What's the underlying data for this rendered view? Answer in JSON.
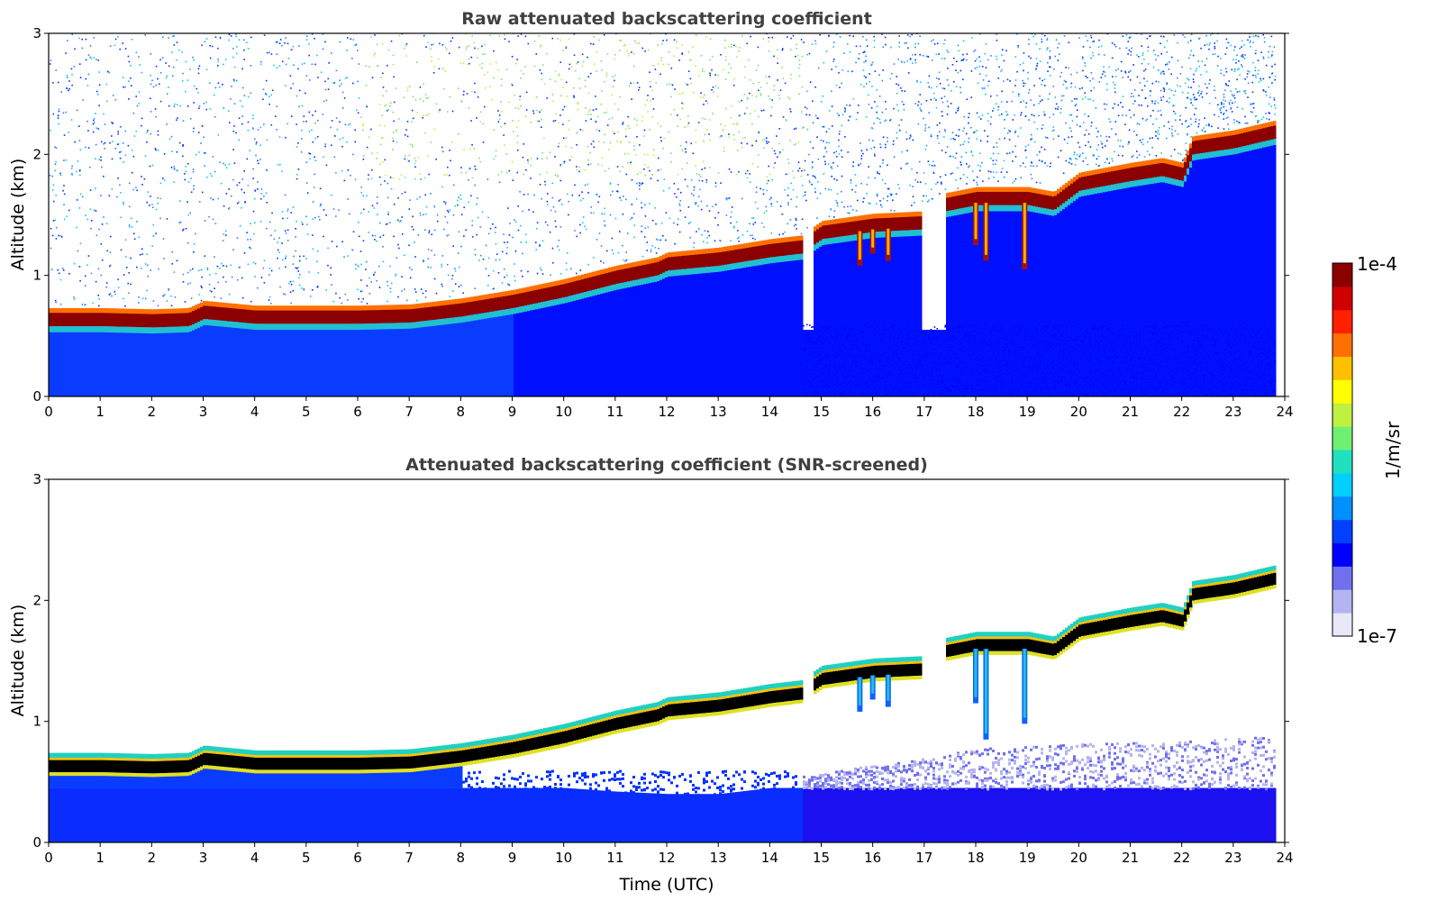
{
  "chart_data": [
    {
      "type": "heatmap",
      "title": "Raw attenuated backscattering coefficient",
      "xlabel": "",
      "ylabel": "Altitude (km)",
      "xlim": [
        0,
        24
      ],
      "ylim": [
        0,
        3
      ],
      "xticks": [
        "0",
        "1",
        "2",
        "3",
        "4",
        "5",
        "6",
        "7",
        "8",
        "9",
        "10",
        "11",
        "12",
        "13",
        "14",
        "15",
        "16",
        "17",
        "18",
        "19",
        "20",
        "21",
        "22",
        "23",
        "24"
      ],
      "yticks": [
        "0",
        "1",
        "2",
        "3"
      ],
      "x_units": "hours UTC",
      "data_end_x": 23.8,
      "layer_top_km": {
        "x": [
          0,
          1,
          2,
          2.7,
          3,
          4,
          5,
          6,
          7,
          8,
          9,
          10,
          11,
          11.8,
          12,
          13,
          14,
          14.6,
          15,
          16,
          17,
          17.4,
          18,
          19,
          19.5,
          20,
          21,
          21.6,
          22,
          22.2,
          23,
          23.8
        ],
        "y": [
          0.7,
          0.7,
          0.69,
          0.7,
          0.76,
          0.72,
          0.72,
          0.72,
          0.73,
          0.78,
          0.85,
          0.94,
          1.05,
          1.12,
          1.16,
          1.2,
          1.27,
          1.3,
          1.42,
          1.48,
          1.5,
          1.65,
          1.7,
          1.7,
          1.66,
          1.82,
          1.9,
          1.94,
          1.9,
          2.12,
          2.17,
          2.25
        ]
      },
      "gaps_x": [
        [
          14.6,
          14.85
        ],
        [
          16.95,
          17.4
        ]
      ],
      "fallstreaks": [
        {
          "x": 15.75,
          "bottom_km": 1.08
        },
        {
          "x": 16.0,
          "bottom_km": 1.18
        },
        {
          "x": 16.3,
          "bottom_km": 1.12
        },
        {
          "x": 18.0,
          "bottom_km": 1.25
        },
        {
          "x": 18.2,
          "bottom_km": 1.12
        },
        {
          "x": 18.95,
          "bottom_km": 1.05
        }
      ]
    },
    {
      "type": "heatmap",
      "title": "Attenuated backscattering coefficient (SNR-screened)",
      "xlabel": "Time (UTC)",
      "ylabel": "Altitude (km)",
      "xlim": [
        0,
        24
      ],
      "ylim": [
        0,
        3
      ],
      "xticks": [
        "0",
        "1",
        "2",
        "3",
        "4",
        "5",
        "6",
        "7",
        "8",
        "9",
        "10",
        "11",
        "12",
        "13",
        "14",
        "15",
        "16",
        "17",
        "18",
        "19",
        "20",
        "21",
        "22",
        "23",
        "24"
      ],
      "yticks": [
        "0",
        "1",
        "2",
        "3"
      ],
      "x_units": "hours UTC",
      "data_end_x": 23.8,
      "screened": true,
      "boundary_layer_top_km": {
        "x": [
          0,
          6,
          7,
          8,
          9,
          10,
          11,
          12,
          13,
          14,
          14.6,
          16,
          17,
          18,
          20,
          22,
          23.8
        ],
        "y": [
          0.58,
          0.58,
          0.56,
          0.55,
          0.52,
          0.45,
          0.42,
          0.4,
          0.4,
          0.45,
          0.55,
          0.65,
          0.7,
          0.78,
          0.82,
          0.85,
          0.88
        ]
      },
      "fallstreaks": [
        {
          "x": 15.75,
          "bottom_km": 1.08
        },
        {
          "x": 16.0,
          "bottom_km": 1.18
        },
        {
          "x": 16.3,
          "bottom_km": 1.12
        },
        {
          "x": 18.0,
          "bottom_km": 1.15
        },
        {
          "x": 18.2,
          "bottom_km": 0.85
        },
        {
          "x": 18.95,
          "bottom_km": 0.98
        }
      ]
    }
  ],
  "colorbar": {
    "label": "1/m/sr",
    "max_label": "1e-4",
    "min_label": "1e-7",
    "colormap": [
      "#e8e8f8",
      "#b4b4f0",
      "#7070ee",
      "#0000ff",
      "#0040ff",
      "#0090ff",
      "#00d0ff",
      "#20e0c0",
      "#70f070",
      "#c0f040",
      "#ffff00",
      "#ffc000",
      "#ff7000",
      "#ff2000",
      "#d00000",
      "#8b0000"
    ]
  }
}
